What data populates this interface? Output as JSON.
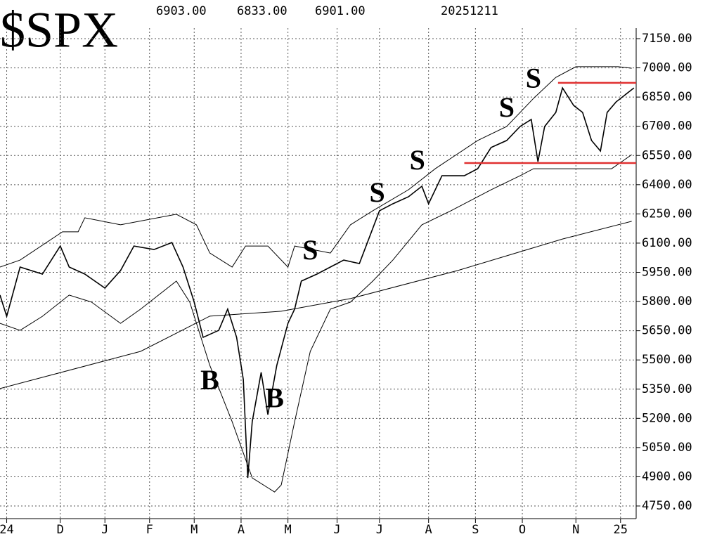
{
  "chart_data": {
    "type": "line",
    "title": "$SPX",
    "header": [
      "6903.00",
      "6833.00",
      "6901.00",
      "20251211"
    ],
    "xlim": [
      0,
      285
    ],
    "ylim": [
      4750,
      7150
    ],
    "xticks": [
      {
        "value": 3,
        "label": "24"
      },
      {
        "value": 27,
        "label": "D"
      },
      {
        "value": 47,
        "label": "J"
      },
      {
        "value": 67,
        "label": "F"
      },
      {
        "value": 87,
        "label": "M"
      },
      {
        "value": 108,
        "label": "A"
      },
      {
        "value": 129,
        "label": "M"
      },
      {
        "value": 151,
        "label": "J"
      },
      {
        "value": 170,
        "label": "J"
      },
      {
        "value": 192,
        "label": "A"
      },
      {
        "value": 213,
        "label": "S"
      },
      {
        "value": 234,
        "label": "O"
      },
      {
        "value": 258,
        "label": "N"
      },
      {
        "value": 278,
        "label": "25"
      }
    ],
    "yticks": [
      {
        "value": 7150,
        "label": "7150.00"
      },
      {
        "value": 7000,
        "label": "7000.00"
      },
      {
        "value": 6850,
        "label": "6850.00"
      },
      {
        "value": 6700,
        "label": "6700.00"
      },
      {
        "value": 6550,
        "label": "6550.00"
      },
      {
        "value": 6400,
        "label": "6400.00"
      },
      {
        "value": 6250,
        "label": "6250.00"
      },
      {
        "value": 6100,
        "label": "6100.00"
      },
      {
        "value": 5950,
        "label": "5950.00"
      },
      {
        "value": 5800,
        "label": "5800.00"
      },
      {
        "value": 5650,
        "label": "5650.00"
      },
      {
        "value": 5500,
        "label": "5500.00"
      },
      {
        "value": 5350,
        "label": "5350.00"
      },
      {
        "value": 5200,
        "label": "5200.00"
      },
      {
        "value": 5050,
        "label": "5050.00"
      },
      {
        "value": 4900,
        "label": "4900.00"
      },
      {
        "value": 4750,
        "label": "4750.00"
      }
    ],
    "grid": true,
    "series": [
      {
        "color": "#000000",
        "width": 1.6,
        "x": [
          0,
          3,
          9,
          19,
          27,
          31,
          38,
          47,
          54,
          60,
          69,
          77,
          82,
          87,
          91,
          98,
          102,
          106,
          109,
          111,
          113,
          117,
          120,
          124,
          129,
          132,
          135,
          142,
          148,
          154,
          161,
          164,
          170,
          176,
          183,
          189,
          192,
          198,
          208,
          214,
          220,
          227,
          233,
          238,
          241,
          244,
          249,
          252,
          257,
          261,
          265,
          269,
          272,
          276,
          280,
          284
        ],
        "values": [
          5833,
          5724,
          5977,
          5941,
          6085,
          5977,
          5941,
          5869,
          5959,
          6085,
          6067,
          6103,
          5977,
          5797,
          5616,
          5652,
          5761,
          5616,
          5400,
          4894,
          5183,
          5436,
          5219,
          5472,
          5688,
          5761,
          5905,
          5941,
          5977,
          6013,
          5995,
          6085,
          6266,
          6302,
          6338,
          6392,
          6302,
          6446,
          6446,
          6482,
          6591,
          6627,
          6699,
          6735,
          6518,
          6699,
          6771,
          6897,
          6807,
          6771,
          6627,
          6573,
          6771,
          6825,
          6861,
          6897
        ]
      },
      {
        "color": "#000000",
        "width": 1,
        "x": [
          0,
          9,
          28,
          35,
          38,
          54,
          79,
          88,
          94,
          104,
          110,
          120,
          129,
          132,
          148,
          157,
          167,
          183,
          195,
          214,
          227,
          239,
          249,
          258,
          277,
          283
        ],
        "values": [
          5977,
          6013,
          6158,
          6158,
          6230,
          6194,
          6248,
          6194,
          6049,
          5977,
          6085,
          6085,
          5977,
          6085,
          6049,
          6194,
          6266,
          6374,
          6482,
          6627,
          6699,
          6843,
          6951,
          7006,
          7006,
          6998
        ]
      },
      {
        "color": "#000000",
        "width": 1,
        "x": [
          0,
          9,
          19,
          31,
          41,
          54,
          63,
          79,
          85,
          94,
          104,
          113,
          123,
          126,
          132,
          139,
          148,
          157,
          167,
          176,
          189,
          202,
          220,
          233,
          239,
          252,
          274,
          283
        ],
        "values": [
          5688,
          5652,
          5724,
          5833,
          5797,
          5688,
          5761,
          5905,
          5797,
          5472,
          5183,
          4894,
          4822,
          4858,
          5183,
          5544,
          5761,
          5797,
          5905,
          6013,
          6194,
          6266,
          6374,
          6446,
          6482,
          6482,
          6482,
          6554
        ]
      },
      {
        "color": "#000000",
        "width": 1,
        "x": [
          0,
          63,
          94,
          126,
          157,
          205,
          252,
          283
        ],
        "values": [
          5353,
          5544,
          5725,
          5750,
          5815,
          5959,
          6121,
          6212
        ]
      }
    ],
    "hlines": [
      {
        "value": 6923,
        "x": [
          250,
          285
        ],
        "color": "#e03030"
      },
      {
        "value": 6511,
        "x": [
          208,
          285
        ],
        "color": "#e03030"
      }
    ],
    "annotations": [
      {
        "text": "B",
        "x": 94,
        "y": 5382,
        "color": "#1f7fbf"
      },
      {
        "text": "B",
        "x": 123,
        "y": 5291,
        "color": "#e03030"
      },
      {
        "text": "S",
        "x": 139,
        "y": 6049,
        "color": "#1f7fbf"
      },
      {
        "text": "S",
        "x": 169,
        "y": 6345,
        "color": "#1f7fbf"
      },
      {
        "text": "S",
        "x": 187,
        "y": 6511,
        "color": "#1f7fbf"
      },
      {
        "text": "S",
        "x": 227,
        "y": 6782,
        "color": "#1f7fbf"
      },
      {
        "text": "S",
        "x": 239,
        "y": 6933,
        "color": "#e03030"
      }
    ]
  }
}
